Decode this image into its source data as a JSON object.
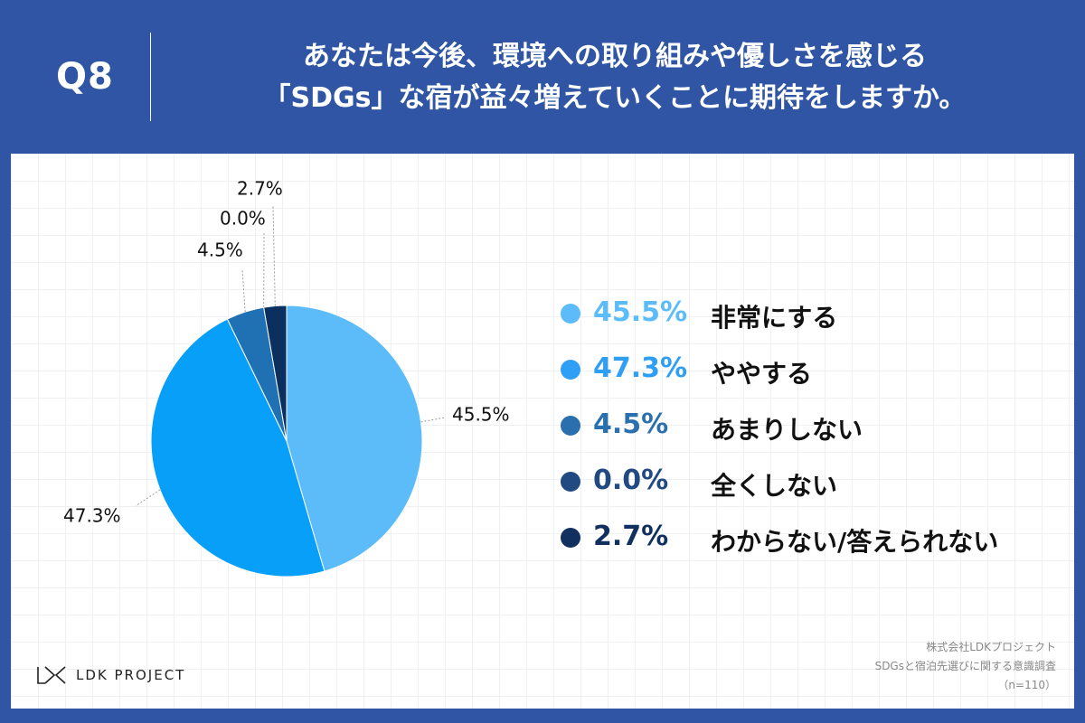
{
  "header": {
    "q_label": "Q8",
    "title_line1": "あなたは今後、環境への取り組みや優しさを感じる",
    "title_line2": "「SDGs」な宿が益々増えていくことに期待をしますか。"
  },
  "chart_data": {
    "type": "pie",
    "unit": "%",
    "categories": [
      "非常にする",
      "ややする",
      "あまりしない",
      "全くしない",
      "わからない/答えられない"
    ],
    "values": [
      45.5,
      47.3,
      4.5,
      0.0,
      2.7
    ],
    "value_labels": [
      "45.5%",
      "47.3%",
      "4.5%",
      "0.0%",
      "2.7%"
    ],
    "colors": [
      "#5bbcf9",
      "#079ff8",
      "#2071b3",
      "#1c4a82",
      "#0b2f5e"
    ],
    "legend_placement": "right",
    "start": "12 o'clock, clockwise"
  },
  "legend": {
    "items": [
      {
        "pct": "45.5%",
        "label": "非常にする",
        "color": "#5bbcf9"
      },
      {
        "pct": "47.3%",
        "label": "ややする",
        "color": "#2f9ef5"
      },
      {
        "pct": "4.5%",
        "label": "あまりしない",
        "color": "#2b70ae"
      },
      {
        "pct": "0.0%",
        "label": "全くしない",
        "color": "#224a82"
      },
      {
        "pct": "2.7%",
        "label": "わからない/答えられない",
        "color": "#12305f"
      }
    ]
  },
  "footer": {
    "logo_text": "LDK PROJECT",
    "source_line1": "株式会社LDKプロジェクト",
    "source_line2": "SDGsと宿泊先選びに関する意識調査",
    "source_line3": "（n=110）"
  }
}
